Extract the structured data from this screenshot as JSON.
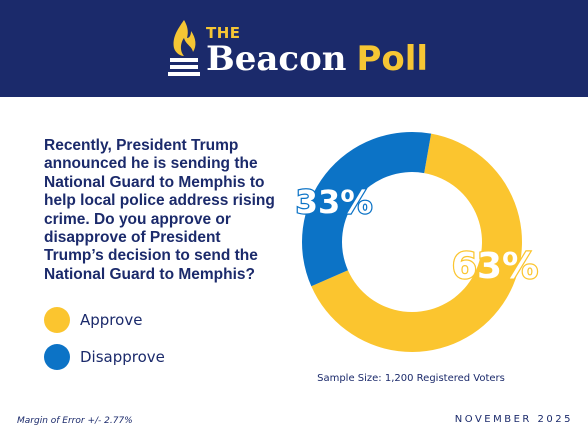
{
  "header": {
    "logo_the": "THE",
    "logo_beacon": "Beacon",
    "logo_poll": "Poll",
    "background_color": "#1b2a6b",
    "accent_color": "#f6c634",
    "logo_icon": "torch-icon"
  },
  "question": "Recently, President Trump announced he is sending the National Guard to Memphis to help local police address rising crime. Do you approve or disapprove of President Trump’s decision to send the National Guard to Memphis?",
  "chart_data": {
    "type": "pie",
    "variant": "donut",
    "title": "",
    "slices": [
      {
        "label": "Approve",
        "value": 63,
        "display": "63%",
        "color": "#fbc52f"
      },
      {
        "label": "Disapprove",
        "value": 33,
        "display": "33%",
        "color": "#0c73c6"
      }
    ],
    "legend_position": "left"
  },
  "legend": [
    {
      "label": "Approve",
      "color": "#fbc52f"
    },
    {
      "label": "Disapprove",
      "color": "#0c73c6"
    }
  ],
  "footer": {
    "sample_size": "Sample Size: 1,200 Registered Voters",
    "margin_of_error": "Margin of Error +/- 2.77%",
    "date": "NOVEMBER 2025"
  }
}
